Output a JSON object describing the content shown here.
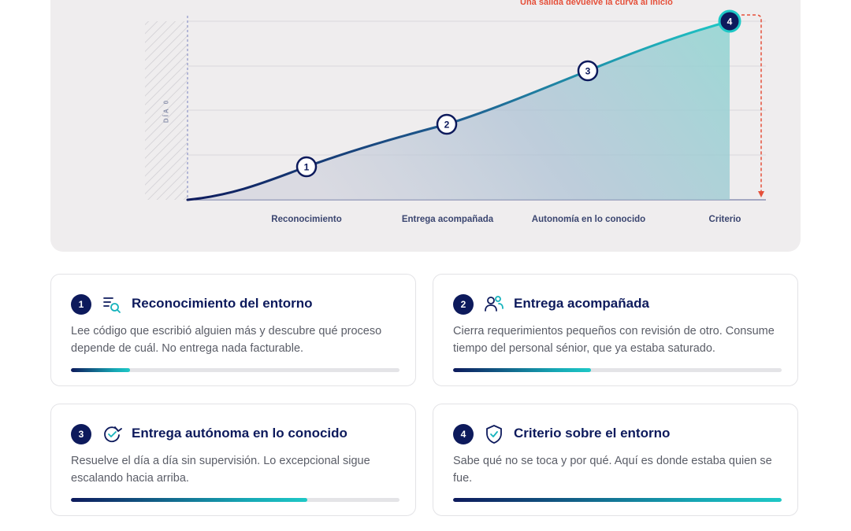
{
  "chart": {
    "exit_note": "Una salida devuelve la curva al inicio",
    "day_zero": "DÍA 0",
    "stages": [
      {
        "number": "1",
        "label": "Reconocimiento"
      },
      {
        "number": "2",
        "label": "Entrega acompañada"
      },
      {
        "number": "3",
        "label": "Autonomía en lo conocido"
      },
      {
        "number": "4",
        "label": "Criterio"
      }
    ],
    "colors": {
      "navy": "#0d1a5c",
      "teal": "#1ec8c6",
      "alert": "#e5503a"
    }
  },
  "cards": [
    {
      "number": "1",
      "icon": "list-search-icon",
      "title": "Reconocimiento del entorno",
      "description": "Lee código que escribió alguien más y descubre qué proceso depende de cuál. No entrega nada facturable.",
      "progress": 0.18
    },
    {
      "number": "2",
      "icon": "people-icon",
      "title": "Entrega acompañada",
      "description": "Cierra requerimientos pequeños con revisión de otro. Consume tiempo del personal sénior, que ya estaba saturado.",
      "progress": 0.42
    },
    {
      "number": "3",
      "icon": "refresh-check-icon",
      "title": "Entrega autónoma en lo conocido",
      "description": "Resuelve el día a día sin supervisión. Lo excepcional sigue escalando hacia arriba.",
      "progress": 0.72
    },
    {
      "number": "4",
      "icon": "shield-check-icon",
      "title": "Criterio sobre el entorno",
      "description": "Sabe qué no se toca y por qué. Aquí es donde estaba quien se fue.",
      "progress": 1.0
    }
  ]
}
